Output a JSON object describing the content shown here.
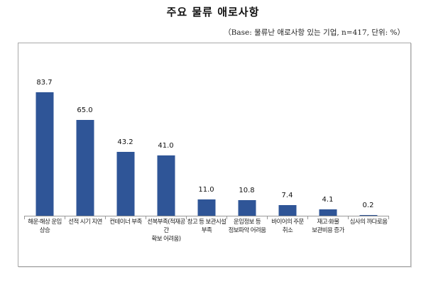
{
  "page": {
    "title": "주요 물류 애로사항",
    "subtitle": "（Base: 물류난 애로사항 있는 기업, n=417, 단위: %）"
  },
  "colors": {
    "bar": "#2f5597",
    "frame": "#a8a8a8"
  },
  "chart_data": {
    "type": "bar",
    "title": "주요 물류 애로사항",
    "subtitle": "(Base: 물류난 애로사항 있는 기업, n=417, 단위: %)",
    "xlabel": "",
    "ylabel": "",
    "unit": "%",
    "ylim": [
      0,
      100
    ],
    "grid": false,
    "legend": "none",
    "categories": [
      "해운·해상 운임 상승",
      "선적 시기 지연",
      "컨테이너 부족",
      "선복부족(적재공간 확보 어려움)",
      "창고 등 보관시설 부족",
      "운임정보 등 정보파악 어려움",
      "바이어의 주문 취소",
      "재고·화물 보관비용 증가",
      "심사의 까다로움"
    ],
    "category_display": [
      "해운·해상 운임\n상승",
      "선적 시기 지연",
      "컨테이너 부족",
      "선복부족(적재공간\n확보 어려움)",
      "창고 등 보관시설\n부족",
      "운임정보 등\n정보파악 어려움",
      "바이어의 주문\n취소",
      "재고·화물\n보관비용 증가",
      "심사의 까다로움"
    ],
    "values": [
      83.7,
      65.0,
      43.2,
      41.0,
      11.0,
      10.8,
      7.4,
      4.1,
      0.2
    ],
    "value_labels": [
      "83.7",
      "65.0",
      "43.2",
      "41.0",
      "11.0",
      "10.8",
      "7.4",
      "4.1",
      "0.2"
    ]
  }
}
